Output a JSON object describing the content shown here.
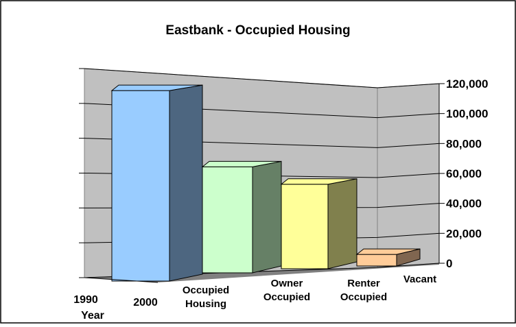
{
  "chart_data": {
    "type": "bar3d",
    "title": "Eastbank - Occupied Housing",
    "categories": [
      "Occupied Housing",
      "Owner Occupied",
      "Renter Occupied",
      "Vacant"
    ],
    "values": [
      115000,
      64000,
      51000,
      7000
    ],
    "colors": [
      "#99ccff",
      "#ccffcc",
      "#ffff99",
      "#ffcc99"
    ],
    "side_colors": [
      "#4d6680",
      "#668066",
      "#80804d",
      "#806650"
    ],
    "depth_labels": [
      "1990",
      "2000"
    ],
    "depth_title": "Year",
    "ylim": [
      0,
      120000
    ],
    "yticks": [
      {
        "value": 0,
        "label": "0"
      },
      {
        "value": 20000,
        "label": "20,000"
      },
      {
        "value": 40000,
        "label": "40,000"
      },
      {
        "value": 60000,
        "label": "60,000"
      },
      {
        "value": 80000,
        "label": "80,000"
      },
      {
        "value": 100000,
        "label": "100,000"
      },
      {
        "value": 120000,
        "label": "120,000"
      }
    ],
    "grid": true
  }
}
